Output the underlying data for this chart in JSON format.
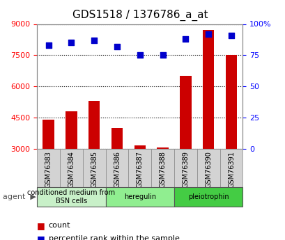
{
  "title": "GDS1518 / 1376786_a_at",
  "samples": [
    "GSM76383",
    "GSM76384",
    "GSM76385",
    "GSM76386",
    "GSM76387",
    "GSM76388",
    "GSM76389",
    "GSM76390",
    "GSM76391"
  ],
  "counts": [
    4400,
    4800,
    5300,
    4000,
    3150,
    3050,
    6500,
    8700,
    7500
  ],
  "percentiles": [
    83,
    85,
    87,
    82,
    75,
    75,
    88,
    92,
    91
  ],
  "ylim_left": [
    3000,
    9000
  ],
  "ylim_right": [
    0,
    100
  ],
  "yticks_left": [
    3000,
    4500,
    6000,
    7500,
    9000
  ],
  "yticks_right": [
    0,
    25,
    50,
    75,
    100
  ],
  "bar_color": "#cc0000",
  "dot_color": "#0000cc",
  "grid_color": "#000000",
  "bg_color": "#ffffff",
  "agent_groups": [
    {
      "label": "conditioned medium from\nBSN cells",
      "start": 0,
      "end": 3,
      "color": "#c8f0c8"
    },
    {
      "label": "heregulin",
      "start": 3,
      "end": 6,
      "color": "#90ee90"
    },
    {
      "label": "pleiotrophin",
      "start": 6,
      "end": 9,
      "color": "#44cc44"
    }
  ],
  "legend_items": [
    {
      "color": "#cc0000",
      "label": "count"
    },
    {
      "color": "#0000cc",
      "label": "percentile rank within the sample"
    }
  ]
}
